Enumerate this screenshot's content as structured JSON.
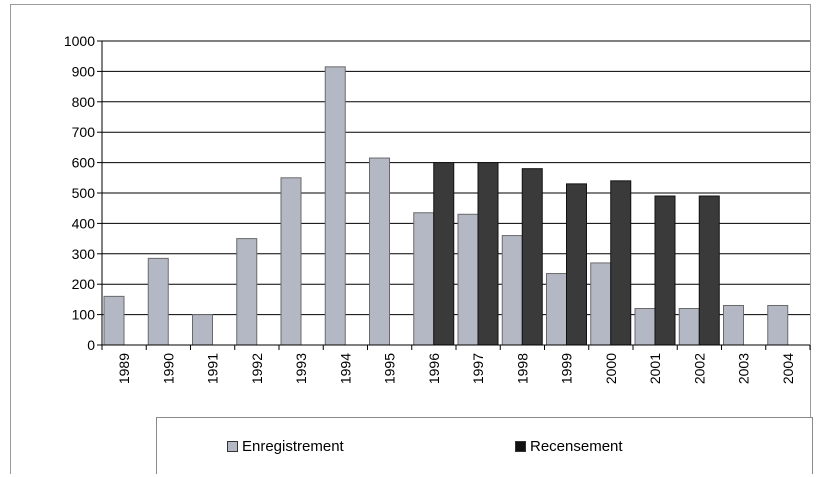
{
  "chart_data": {
    "type": "bar",
    "title": "",
    "xlabel": "",
    "ylabel": "",
    "ylim": [
      0,
      1000
    ],
    "yticks": [
      0,
      100,
      200,
      300,
      400,
      500,
      600,
      700,
      800,
      900,
      1000
    ],
    "grid": true,
    "legend_position": "bottom",
    "categories": [
      "1989",
      "1990",
      "1991",
      "1992",
      "1993",
      "1994",
      "1995",
      "1996",
      "1997",
      "1998",
      "1999",
      "2000",
      "2001",
      "2002",
      "2003",
      "2004"
    ],
    "series": [
      {
        "name": "Enregistrement",
        "color": "#b4b8c4",
        "values": [
          160,
          285,
          100,
          350,
          550,
          915,
          615,
          435,
          430,
          360,
          235,
          270,
          120,
          120,
          130,
          130
        ]
      },
      {
        "name": "Recensement",
        "color": "#3a3a3a",
        "values": [
          null,
          null,
          null,
          null,
          null,
          null,
          null,
          600,
          600,
          580,
          530,
          540,
          490,
          490,
          null,
          null
        ]
      }
    ]
  }
}
